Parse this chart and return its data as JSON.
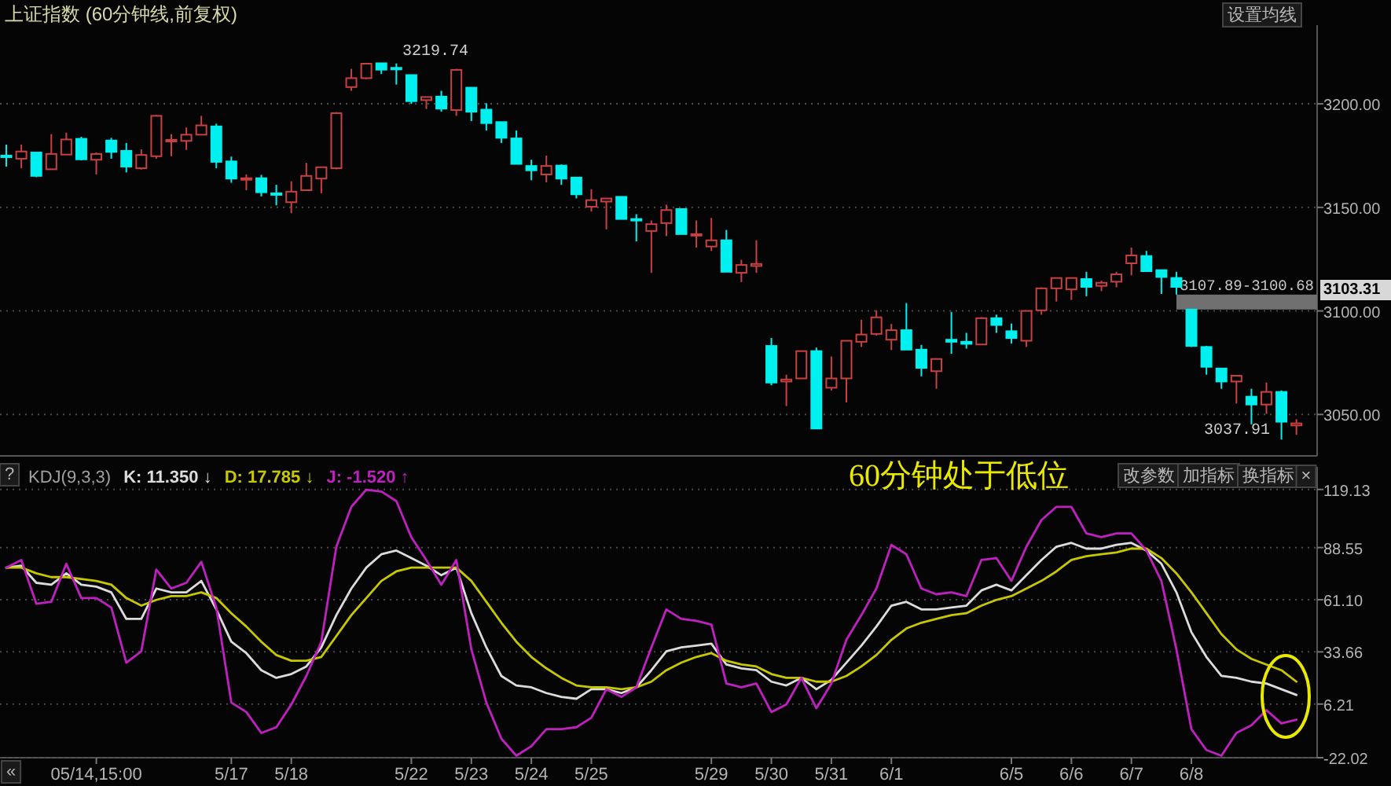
{
  "chart_data": [
    {
      "type": "candlestick",
      "title": "上证指数 (60分钟线,前复权)",
      "categories": [
        null,
        null,
        null,
        null,
        null,
        null,
        null,
        null,
        null,
        null,
        null,
        null,
        null,
        null,
        null,
        null,
        null,
        null,
        null,
        null,
        null,
        null,
        null,
        null,
        null,
        null,
        null,
        null,
        null,
        null,
        null,
        null,
        null,
        null,
        null,
        null,
        null,
        null,
        null,
        null,
        null,
        null,
        null,
        null,
        null,
        null,
        null,
        null,
        null,
        null,
        null,
        null,
        null,
        null,
        null,
        null,
        null,
        null,
        null,
        null,
        null,
        null,
        null,
        null,
        null,
        null,
        null,
        null,
        null,
        null,
        null,
        null,
        null,
        null,
        null,
        null,
        null,
        null,
        null,
        null,
        null,
        null,
        null,
        null,
        null,
        null,
        null
      ],
      "ohlc": [
        [
          3175.0,
          3180.3,
          3169.7,
          3174.5
        ],
        [
          3173.5,
          3180.3,
          3168.9,
          3177.0
        ],
        [
          3176.5,
          3176.5,
          3164.6,
          3165.2
        ],
        [
          3168.4,
          3185.4,
          3168.4,
          3175.8
        ],
        [
          3175.5,
          3186.1,
          3175.5,
          3182.8
        ],
        [
          3183.1,
          3184.1,
          3172.7,
          3173.2
        ],
        [
          3173.0,
          3176.5,
          3165.9,
          3175.8
        ],
        [
          3182.3,
          3183.6,
          3173.5,
          3176.8
        ],
        [
          3177.3,
          3181.1,
          3166.9,
          3169.7
        ],
        [
          3168.9,
          3178.0,
          3168.2,
          3175.3
        ],
        [
          3174.7,
          3194.7,
          3173.5,
          3194.2
        ],
        [
          3182.1,
          3185.4,
          3174.7,
          3182.6
        ],
        [
          3182.1,
          3188.6,
          3177.8,
          3185.1
        ],
        [
          3185.1,
          3194.2,
          3185.1,
          3189.6
        ],
        [
          3189.1,
          3190.4,
          3168.9,
          3172.0
        ],
        [
          3172.2,
          3174.5,
          3161.9,
          3163.9
        ],
        [
          3163.6,
          3165.9,
          3158.3,
          3164.1
        ],
        [
          3164.1,
          3165.7,
          3155.3,
          3157.3
        ],
        [
          3156.8,
          3160.9,
          3151.0,
          3156.3
        ],
        [
          3152.5,
          3162.6,
          3147.2,
          3157.6
        ],
        [
          3158.3,
          3171.5,
          3158.3,
          3165.2
        ],
        [
          3163.9,
          3169.4,
          3156.8,
          3169.4
        ],
        [
          3168.9,
          3196.0,
          3168.4,
          3195.5
        ],
        [
          3208.1,
          3216.9,
          3206.3,
          3212.4
        ],
        [
          3212.4,
          3219.6,
          3211.9,
          3219.4
        ],
        [
          3219.6,
          3219.74,
          3214.4,
          3216.5
        ],
        [
          3217.4,
          3219.5,
          3209.3,
          3216.7
        ],
        [
          3213.9,
          3213.9,
          3200.0,
          3201.3
        ],
        [
          3201.8,
          3203.3,
          3197.5,
          3203.3
        ],
        [
          3203.5,
          3206.3,
          3196.2,
          3197.7
        ],
        [
          3197.0,
          3216.9,
          3194.2,
          3216.4
        ],
        [
          3207.8,
          3207.8,
          3191.7,
          3196.2
        ],
        [
          3197.2,
          3200.3,
          3187.1,
          3190.7
        ],
        [
          3191.2,
          3191.2,
          3181.1,
          3183.6
        ],
        [
          3183.3,
          3187.1,
          3171.0,
          3171.0
        ],
        [
          3170.0,
          3173.0,
          3163.1,
          3167.9
        ],
        [
          3165.9,
          3175.0,
          3162.1,
          3170.0
        ],
        [
          3170.2,
          3170.7,
          3160.9,
          3163.9
        ],
        [
          3164.4,
          3164.4,
          3154.3,
          3156.3
        ],
        [
          3150.3,
          3158.8,
          3148.0,
          3153.5
        ],
        [
          3152.8,
          3154.3,
          3139.4,
          3154.3
        ],
        [
          3155.1,
          3155.1,
          3144.4,
          3144.4
        ],
        [
          3144.4,
          3146.7,
          3133.6,
          3143.7
        ],
        [
          3138.6,
          3143.7,
          3118.4,
          3141.9
        ],
        [
          3142.4,
          3151.3,
          3136.1,
          3148.7
        ],
        [
          3149.2,
          3149.2,
          3137.1,
          3137.1
        ],
        [
          3136.6,
          3143.7,
          3130.6,
          3137.1
        ],
        [
          3131.1,
          3144.9,
          3129.0,
          3134.1
        ],
        [
          3134.1,
          3139.1,
          3118.9,
          3118.9
        ],
        [
          3118.4,
          3124.7,
          3113.9,
          3122.2
        ],
        [
          3121.7,
          3134.1,
          3118.4,
          3122.7
        ],
        [
          3083.1,
          3086.9,
          3064.1,
          3065.4
        ],
        [
          3065.9,
          3069.2,
          3054.0,
          3066.9
        ],
        [
          3067.4,
          3080.6,
          3067.4,
          3080.6
        ],
        [
          3080.6,
          3082.3,
          3043.2,
          3043.2
        ],
        [
          3062.9,
          3078.0,
          3061.6,
          3067.4
        ],
        [
          3067.4,
          3085.6,
          3055.8,
          3085.6
        ],
        [
          3085.1,
          3095.7,
          3082.6,
          3088.6
        ],
        [
          3088.9,
          3100.3,
          3088.1,
          3096.9
        ],
        [
          3086.1,
          3093.7,
          3081.1,
          3090.7
        ],
        [
          3090.7,
          3103.8,
          3081.3,
          3081.3
        ],
        [
          3081.3,
          3083.6,
          3068.4,
          3072.5
        ],
        [
          3070.9,
          3076.8,
          3062.4,
          3076.8
        ],
        [
          3086.1,
          3099.5,
          3079.3,
          3085.1
        ],
        [
          3085.1,
          3089.4,
          3081.8,
          3084.1
        ],
        [
          3083.8,
          3097.0,
          3083.8,
          3096.5
        ],
        [
          3096.5,
          3098.2,
          3089.4,
          3093.2
        ],
        [
          3090.2,
          3093.9,
          3084.3,
          3086.9
        ],
        [
          3085.6,
          3100.0,
          3082.6,
          3100.0
        ],
        [
          3100.3,
          3111.4,
          3098.2,
          3110.9
        ],
        [
          3110.9,
          3115.9,
          3104.5,
          3115.9
        ],
        [
          3110.4,
          3115.9,
          3105.3,
          3115.9
        ],
        [
          3115.4,
          3118.9,
          3107.1,
          3111.6
        ],
        [
          3112.1,
          3114.6,
          3109.6,
          3113.6
        ],
        [
          3114.1,
          3118.9,
          3111.4,
          3117.7
        ],
        [
          3123.0,
          3130.6,
          3117.2,
          3126.8
        ],
        [
          3126.5,
          3129.0,
          3119.2,
          3119.2
        ],
        [
          3119.7,
          3119.7,
          3108.2,
          3116.4
        ],
        [
          3115.9,
          3118.9,
          3107.89,
          3111.6
        ],
        [
          3100.68,
          3100.68,
          3082.6,
          3083.1
        ],
        [
          3082.6,
          3083.1,
          3069.2,
          3073.0
        ],
        [
          3072.2,
          3072.2,
          3062.4,
          3065.9
        ],
        [
          3065.9,
          3068.7,
          3055.3,
          3068.7
        ],
        [
          3058.6,
          3062.4,
          3045.2,
          3054.8
        ],
        [
          3054.8,
          3065.4,
          3050.3,
          3060.9
        ],
        [
          3060.9,
          3061.6,
          3037.91,
          3046.5
        ],
        [
          3044.7,
          3047.7,
          3040.2,
          3045.7
        ]
      ],
      "colors": [
        "#00f0f0",
        "#c84040",
        "#00f0f0",
        "#c84040",
        "#c84040",
        "#00f0f0",
        "#c84040",
        "#00f0f0",
        "#00f0f0",
        "#c84040",
        "#c84040",
        "#c84040",
        "#c84040",
        "#c84040",
        "#00f0f0",
        "#00f0f0",
        "#c84040",
        "#00f0f0",
        "#00f0f0",
        "#c84040",
        "#c84040",
        "#c84040",
        "#c84040",
        "#c84040",
        "#c84040",
        "#00f0f0",
        "#00f0f0",
        "#00f0f0",
        "#c84040",
        "#00f0f0",
        "#c84040",
        "#00f0f0",
        "#00f0f0",
        "#00f0f0",
        "#00f0f0",
        "#00f0f0",
        "#c84040",
        "#00f0f0",
        "#00f0f0",
        "#c84040",
        "#c84040",
        "#00f0f0",
        "#00f0f0",
        "#c84040",
        "#c84040",
        "#00f0f0",
        "#c84040",
        "#c84040",
        "#00f0f0",
        "#c84040",
        "#c84040",
        "#00f0f0",
        "#c84040",
        "#c84040",
        "#00f0f0",
        "#c84040",
        "#c84040",
        "#c84040",
        "#c84040",
        "#c84040",
        "#00f0f0",
        "#00f0f0",
        "#c84040",
        "#00f0f0",
        "#00f0f0",
        "#c84040",
        "#00f0f0",
        "#00f0f0",
        "#c84040",
        "#c84040",
        "#c84040",
        "#c84040",
        "#00f0f0",
        "#c84040",
        "#c84040",
        "#c84040",
        "#00f0f0",
        "#00f0f0",
        "#00f0f0",
        "#00f0f0",
        "#00f0f0",
        "#00f0f0",
        "#c84040",
        "#00f0f0",
        "#c84040",
        "#00f0f0",
        "#c84040"
      ],
      "ylim": [
        3030,
        3238
      ],
      "yticks": [
        {
          "value": 3050,
          "label": "3050.00"
        },
        {
          "value": 3100,
          "label": "3100.00"
        },
        {
          "value": 3150,
          "label": "3150.00"
        },
        {
          "value": 3200,
          "label": "3200.00"
        }
      ],
      "grid": "y",
      "tick_labels": "y",
      "bands": [
        {
          "axis": "y",
          "from": 3100.68,
          "to": 3107.89,
          "label": "3107.89-3100.68",
          "color": "#707070"
        }
      ],
      "annotations": [
        "设置均线",
        "3219.74",
        "3037.91",
        "3103.31"
      ]
    },
    {
      "type": "line",
      "title": "KDJ(9,3,3)",
      "categories": [
        null,
        null,
        null,
        null,
        null,
        null,
        "05/14,15:00",
        null,
        null,
        null,
        null,
        null,
        null,
        null,
        null,
        "5/17",
        null,
        null,
        null,
        "5/18",
        null,
        null,
        null,
        null,
        null,
        null,
        null,
        "5/22",
        null,
        null,
        null,
        "5/23",
        null,
        null,
        null,
        "5/24",
        null,
        null,
        null,
        "5/25",
        null,
        null,
        null,
        null,
        null,
        null,
        null,
        "5/29",
        null,
        null,
        null,
        "5/30",
        null,
        null,
        null,
        "5/31",
        null,
        null,
        null,
        "6/1",
        null,
        null,
        null,
        null,
        null,
        null,
        null,
        "6/5",
        null,
        null,
        null,
        "6/6",
        null,
        null,
        null,
        "6/7",
        null,
        null,
        null,
        "6/8",
        null,
        null,
        null,
        null,
        null,
        null,
        null
      ],
      "series": [
        {
          "name": "K: 11.350 ↓",
          "color": "#dcdcdc",
          "values": [
            78,
            79,
            70,
            69,
            75,
            69,
            68,
            65,
            51,
            51,
            67,
            65,
            65,
            71,
            56,
            39,
            33,
            24,
            20,
            22,
            26,
            36,
            53,
            67,
            78,
            85,
            87,
            83,
            79,
            74,
            78,
            54,
            36,
            21,
            16,
            15,
            12,
            10,
            9,
            14,
            14,
            12,
            15,
            24,
            34,
            36,
            37,
            38,
            27,
            25,
            24,
            18,
            16,
            20,
            14,
            19,
            28,
            37,
            47,
            58,
            60,
            56,
            56,
            57,
            58,
            66,
            69,
            66,
            74,
            82,
            89,
            91,
            88,
            88,
            90,
            91,
            87,
            80,
            65,
            44,
            31,
            21,
            20,
            18,
            17,
            14,
            11
          ]
        },
        {
          "name": "D: 17.785 ↓",
          "color": "#c8c800",
          "values": [
            78,
            78,
            75,
            73,
            73,
            72,
            71,
            69,
            62,
            58,
            61,
            63,
            63,
            65,
            62,
            54,
            47,
            39,
            32,
            29,
            29,
            31,
            42,
            53,
            62,
            71,
            76,
            78,
            78,
            78,
            78,
            71,
            60,
            49,
            39,
            31,
            25,
            20,
            16,
            15,
            15,
            14,
            15,
            18,
            24,
            28,
            31,
            33,
            29,
            27,
            26,
            22,
            20,
            20,
            18,
            18,
            21,
            26,
            32,
            40,
            46,
            49,
            51,
            53,
            54,
            58,
            61,
            63,
            67,
            71,
            76,
            82,
            84,
            85,
            86,
            88,
            88,
            83,
            75,
            65,
            54,
            43,
            35,
            30,
            27,
            24,
            18
          ]
        },
        {
          "name": "J: -1.520 ↑",
          "color": "#c020c0",
          "values": [
            78,
            82,
            59,
            60,
            80,
            62,
            62,
            57,
            28,
            34,
            77,
            67,
            70,
            81,
            57,
            7,
            2,
            -9,
            -6,
            6,
            21,
            39,
            89,
            110,
            119,
            118,
            113,
            94,
            82,
            69,
            82,
            35,
            7,
            -12,
            -21,
            -16,
            -7,
            -7,
            -6,
            -1,
            14,
            10,
            15,
            36,
            56,
            51,
            50,
            48,
            17,
            15,
            17,
            2,
            6,
            20,
            4,
            17,
            40,
            53,
            67,
            90,
            85,
            67,
            64,
            65,
            63,
            82,
            83,
            71,
            89,
            103,
            110,
            110,
            96,
            94,
            96,
            96,
            87,
            71,
            35,
            -7,
            -18,
            -21,
            -9,
            -5,
            3,
            -4,
            -2
          ]
        }
      ],
      "ylim": [
        -22.02,
        131
      ],
      "yticks": [
        -22.02,
        6.21,
        33.66,
        {
          "value": 61.1,
          "label": "61.10"
        },
        88.55,
        119.13
      ],
      "grid": "y",
      "legend": "top left",
      "annotations": [
        "60分钟处于低位",
        "改参数",
        "加指标",
        "换指标",
        "×",
        "?",
        "«"
      ]
    }
  ]
}
